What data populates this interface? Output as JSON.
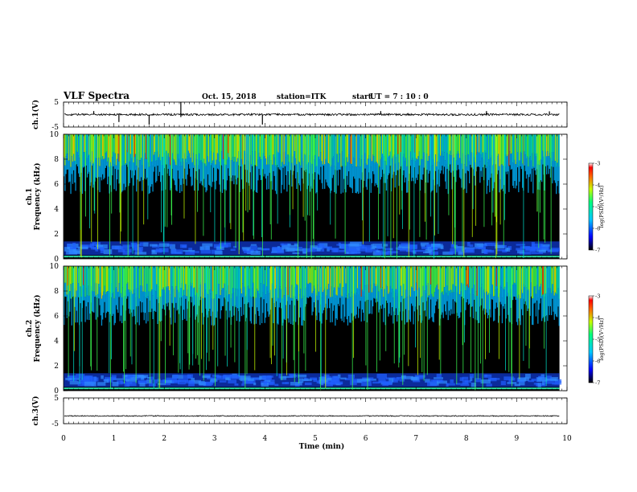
{
  "header": {
    "title": "VLF Spectra",
    "date": "Oct. 15, 2018",
    "station": "station=ITK",
    "start_label": "start",
    "start_ut": "UT =  7 : 10 : 0"
  },
  "chart_data": {
    "type": "heatmap",
    "xlabel": "Time (min)",
    "xlim": [
      0,
      10
    ],
    "x_ticks": [
      "0",
      "1",
      "2",
      "3",
      "4",
      "5",
      "6",
      "7",
      "8",
      "9",
      "10"
    ],
    "waveform_ch1": {
      "ylabel": "ch.1(V)",
      "ylim": [
        -5,
        5
      ],
      "y_ticks": [
        "5",
        "-5"
      ],
      "baseline": 0
    },
    "spectrogram_ch1": {
      "ylabel_top": "ch.1",
      "ylabel": "Frequency (kHz)",
      "ylim": [
        0,
        10
      ],
      "y_ticks": [
        "0",
        "2",
        "4",
        "6",
        "8",
        "10"
      ],
      "colorbar": {
        "label": "log(PSD)(V²/Hz)",
        "range": [
          -7,
          -3
        ],
        "ticks": [
          "-3",
          "-4",
          "-5",
          "-6",
          "-7"
        ]
      }
    },
    "spectrogram_ch2": {
      "ylabel_top": "ch.2",
      "ylabel": "Frequency (kHz)",
      "ylim": [
        0,
        10
      ],
      "y_ticks": [
        "0",
        "2",
        "4",
        "6",
        "8",
        "10"
      ],
      "colorbar": {
        "label": "log(PSD)(V²/Hz)",
        "range": [
          -7,
          -3
        ],
        "ticks": [
          "-3",
          "-4",
          "-5",
          "-6",
          "-7"
        ]
      }
    },
    "waveform_ch3": {
      "ylabel": "ch.3(V)",
      "ylim": [
        -5,
        5
      ],
      "y_ticks": [
        "5",
        "-5"
      ],
      "baseline": -2
    },
    "data_end_min": 9.85,
    "colors": {
      "background": "#000000",
      "band": "#1f5fff",
      "bursts": [
        "#0a3cff",
        "#00b4ff",
        "#00e0c8",
        "#3cff50",
        "#c8ff00",
        "#ffdc00",
        "#ff3c00"
      ]
    }
  }
}
